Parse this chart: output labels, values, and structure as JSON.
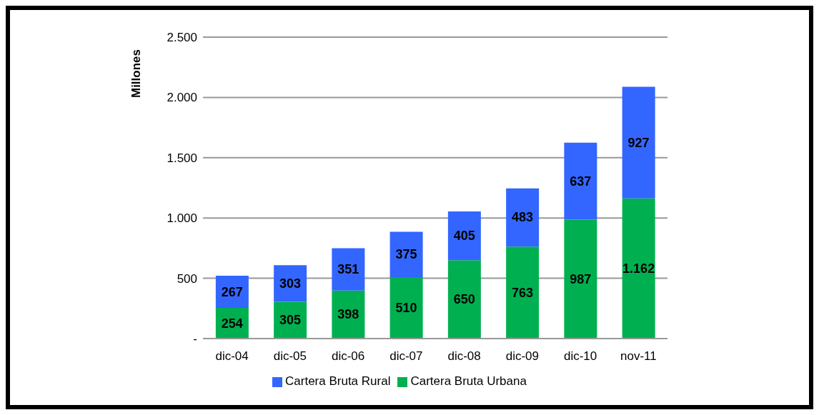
{
  "chart_data": {
    "type": "bar",
    "stacked": true,
    "ylabel": "Millones",
    "categories": [
      "dic-04",
      "dic-05",
      "dic-06",
      "dic-07",
      "dic-08",
      "dic-09",
      "dic-10",
      "nov-11"
    ],
    "series": [
      {
        "name": "Cartera Bruta Urbana",
        "color": "#00b050",
        "values": [
          254,
          305,
          398,
          510,
          650,
          763,
          987,
          1162
        ],
        "value_labels": [
          "254",
          "305",
          "398",
          "510",
          "650",
          "763",
          "987",
          "1.162"
        ]
      },
      {
        "name": "Cartera Bruta Rural",
        "color": "#3366ff",
        "values": [
          267,
          303,
          351,
          375,
          405,
          483,
          637,
          927
        ],
        "value_labels": [
          "267",
          "303",
          "351",
          "375",
          "405",
          "483",
          "637",
          "927"
        ]
      }
    ],
    "ylim": [
      0,
      2500
    ],
    "yticks": [
      {
        "value": 0,
        "label": "-"
      },
      {
        "value": 500,
        "label": "500"
      },
      {
        "value": 1000,
        "label": "1.000"
      },
      {
        "value": 1500,
        "label": "1.500"
      },
      {
        "value": 2000,
        "label": "2.000"
      },
      {
        "value": 2500,
        "label": "2.500"
      }
    ],
    "grid": "y",
    "legend": "bottom"
  }
}
